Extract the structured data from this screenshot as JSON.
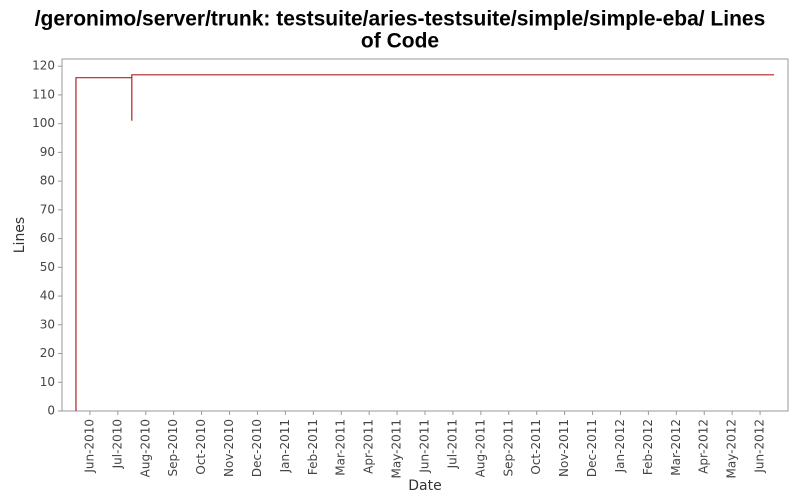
{
  "chart_data": {
    "type": "line",
    "title": [
      "/geronimo/server/trunk: testsuite/aries-testsuite/simple/simple-eba/ Lines",
      "of Code"
    ],
    "x_label": "Date",
    "y_label": "Lines",
    "x": [
      "2010-05",
      "2010-05",
      "2010-07",
      "2010-07",
      "2012-06"
    ],
    "series": [
      {
        "name": "Lines",
        "color": "#b22222",
        "values": [
          0,
          116,
          101,
          117,
          117
        ]
      }
    ],
    "step": true,
    "xlim": [
      "2010-05",
      "2012-06"
    ],
    "xticks": [
      {
        "value": "2010-06",
        "label": "Jun-2010"
      },
      {
        "value": "2010-07",
        "label": "Jul-2010"
      },
      {
        "value": "2010-08",
        "label": "Aug-2010"
      },
      {
        "value": "2010-09",
        "label": "Sep-2010"
      },
      {
        "value": "2010-10",
        "label": "Oct-2010"
      },
      {
        "value": "2010-11",
        "label": "Nov-2010"
      },
      {
        "value": "2010-12",
        "label": "Dec-2010"
      },
      {
        "value": "2011-01",
        "label": "Jan-2011"
      },
      {
        "value": "2011-02",
        "label": "Feb-2011"
      },
      {
        "value": "2011-03",
        "label": "Mar-2011"
      },
      {
        "value": "2011-04",
        "label": "Apr-2011"
      },
      {
        "value": "2011-05",
        "label": "May-2011"
      },
      {
        "value": "2011-06",
        "label": "Jun-2011"
      },
      {
        "value": "2011-07",
        "label": "Jul-2011"
      },
      {
        "value": "2011-08",
        "label": "Aug-2011"
      },
      {
        "value": "2011-09",
        "label": "Sep-2011"
      },
      {
        "value": "2011-10",
        "label": "Oct-2011"
      },
      {
        "value": "2011-11",
        "label": "Nov-2011"
      },
      {
        "value": "2011-12",
        "label": "Dec-2011"
      },
      {
        "value": "2012-01",
        "label": "Jan-2012"
      },
      {
        "value": "2012-02",
        "label": "Feb-2012"
      },
      {
        "value": "2012-03",
        "label": "Mar-2012"
      },
      {
        "value": "2012-04",
        "label": "Apr-2012"
      },
      {
        "value": "2012-05",
        "label": "May-2012"
      },
      {
        "value": "2012-06",
        "label": "Jun-2012"
      }
    ],
    "ylim": [
      0,
      122.5
    ],
    "yticks": [
      0,
      10,
      20,
      30,
      40,
      50,
      60,
      70,
      80,
      90,
      100,
      110,
      120
    ],
    "grid": false
  }
}
